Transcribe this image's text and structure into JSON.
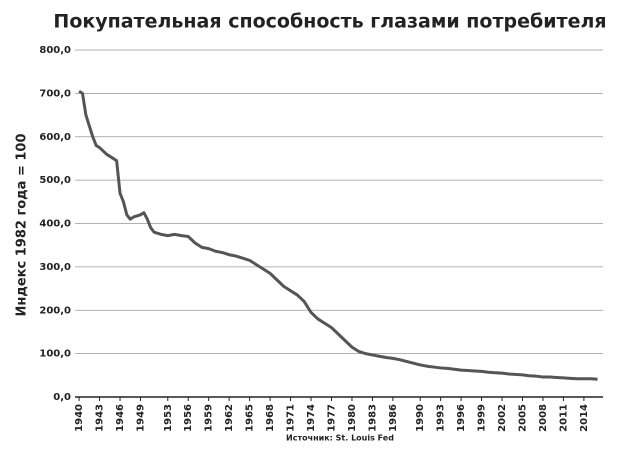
{
  "chart_data": {
    "type": "line",
    "title": "Покупательная способность глазами потребителя",
    "y_label": "Индекс 1982 года = 100",
    "source": "Источник: St. Louis Fed",
    "color": "#555555",
    "grid": true,
    "xlim": [
      1939.4,
      2016.8
    ],
    "ylim": [
      0,
      800
    ],
    "xticks": [
      1940,
      1943,
      1946,
      1949,
      1953,
      1956,
      1959,
      1962,
      1965,
      1968,
      1971,
      1974,
      1977,
      1980,
      1983,
      1986,
      1990,
      1993,
      1996,
      1999,
      2002,
      2005,
      2008,
      2011,
      2014
    ],
    "yticks": [
      {
        "value": 0,
        "label": "0,0"
      },
      {
        "value": 100,
        "label": "100,0"
      },
      {
        "value": 200,
        "label": "200,0"
      },
      {
        "value": 300,
        "label": "300,0"
      },
      {
        "value": 400,
        "label": "400,0"
      },
      {
        "value": 500,
        "label": "500,0"
      },
      {
        "value": 600,
        "label": "600,0"
      },
      {
        "value": 700,
        "label": "700,0"
      },
      {
        "value": 800,
        "label": "800,0"
      }
    ],
    "x": [
      1940,
      1940.5,
      1941,
      1942,
      1942.5,
      1943,
      1944,
      1945,
      1945.5,
      1946,
      1946.5,
      1947,
      1947.5,
      1948,
      1949,
      1949.5,
      1950,
      1950.5,
      1951,
      1952,
      1953,
      1954,
      1955,
      1956,
      1957,
      1958,
      1959,
      1960,
      1961,
      1962,
      1963,
      1964,
      1965,
      1966,
      1967,
      1968,
      1969,
      1970,
      1971,
      1972,
      1973,
      1974,
      1975,
      1976,
      1977,
      1978,
      1979,
      1980,
      1981,
      1982,
      1983,
      1984,
      1985,
      1986,
      1987,
      1988,
      1989,
      1990,
      1991,
      1992,
      1993,
      1994,
      1995,
      1996,
      1997,
      1998,
      1999,
      2000,
      2001,
      2002,
      2003,
      2004,
      2005,
      2006,
      2007,
      2008,
      2009,
      2010,
      2011,
      2012,
      2013,
      2014,
      2015,
      2016
    ],
    "values": [
      705,
      700,
      650,
      600,
      580,
      575,
      560,
      550,
      545,
      470,
      450,
      420,
      410,
      415,
      420,
      425,
      410,
      390,
      380,
      375,
      372,
      375,
      372,
      370,
      355,
      345,
      342,
      336,
      333,
      328,
      325,
      320,
      315,
      305,
      295,
      285,
      270,
      255,
      245,
      235,
      220,
      195,
      180,
      170,
      160,
      145,
      130,
      115,
      105,
      100,
      97,
      94,
      91,
      89,
      86,
      82,
      78,
      74,
      71,
      69,
      67,
      66,
      64,
      62,
      61,
      60,
      59,
      57,
      56,
      55,
      53,
      52,
      51,
      49,
      48,
      46,
      46,
      45,
      44,
      43,
      42,
      42,
      42,
      41
    ]
  }
}
